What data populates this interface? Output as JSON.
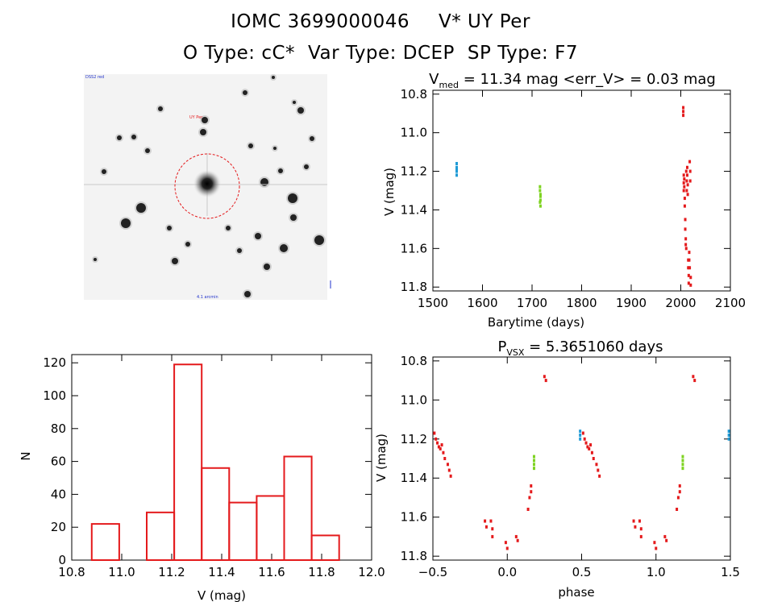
{
  "header": {
    "object": "IOMC 3699000046",
    "star": "V* UY Per",
    "o_type": "O Type: cC*",
    "var_type": "Var Type: DCEP",
    "sp_type": "SP Type: F7"
  },
  "image_panel": {
    "label_top_left": "DSS2 red",
    "label_marker": "UY Per",
    "label_bottom_center": "4.1 arcmin"
  },
  "chart_data": [
    {
      "type": "scatter",
      "title_prefix": "V",
      "title_sub": "med",
      "title_suffix": " = 11.34 mag <err_V> = 0.03 mag",
      "xlabel": "Barytime (days)",
      "ylabel": "V (mag)",
      "xlim": [
        1500,
        2100
      ],
      "ylim": [
        11.82,
        10.78
      ],
      "y_inverted": true,
      "xticks": [
        "1500",
        "1600",
        "1700",
        "1800",
        "1900",
        "2000",
        "2100"
      ],
      "yticks": [
        "10.8",
        "11.0",
        "11.2",
        "11.4",
        "11.6",
        "11.8"
      ],
      "series": [
        {
          "color": "#1f9bd6",
          "x": [
            1548,
            1548,
            1548,
            1548,
            1548
          ],
          "y": [
            11.16,
            11.18,
            11.19,
            11.2,
            11.22
          ]
        },
        {
          "color": "#7ed321",
          "x": [
            1716,
            1716,
            1717,
            1717,
            1717,
            1716,
            1717
          ],
          "y": [
            11.28,
            11.3,
            11.32,
            11.33,
            11.35,
            11.36,
            11.38
          ]
        },
        {
          "color": "#e41a1c",
          "x": [
            2005,
            2005,
            2005,
            2006,
            2006,
            2006,
            2007,
            2007,
            2008,
            2008,
            2009,
            2009,
            2010,
            2010,
            2011,
            2011,
            2012,
            2012,
            2013,
            2013,
            2014,
            2014,
            2015,
            2015,
            2016,
            2016,
            2017,
            2017,
            2018,
            2018,
            2019,
            2019,
            2020,
            2020
          ],
          "y": [
            10.87,
            10.89,
            10.91,
            11.22,
            11.26,
            11.3,
            11.24,
            11.28,
            11.34,
            11.38,
            11.45,
            11.5,
            11.55,
            11.58,
            11.6,
            11.2,
            11.25,
            11.3,
            11.18,
            11.22,
            11.27,
            11.32,
            11.66,
            11.7,
            11.74,
            11.78,
            11.62,
            11.66,
            11.7,
            11.15,
            11.2,
            11.25,
            11.75,
            11.79
          ]
        }
      ]
    },
    {
      "type": "bar",
      "xlabel": "V (mag)",
      "ylabel": "N",
      "xlim": [
        10.8,
        12.0
      ],
      "ylim": [
        0,
        125
      ],
      "xticks": [
        "10.8",
        "11.0",
        "11.2",
        "11.4",
        "11.6",
        "11.8",
        "12.0"
      ],
      "yticks": [
        "0",
        "20",
        "40",
        "60",
        "80",
        "100",
        "120"
      ],
      "bin_edges": [
        10.88,
        10.99,
        11.1,
        11.21,
        11.32,
        11.43,
        11.54,
        11.65,
        11.76,
        11.87
      ],
      "values": [
        22,
        0,
        29,
        119,
        56,
        35,
        39,
        63,
        15
      ],
      "color": "#e41a1c"
    },
    {
      "type": "scatter",
      "title_prefix": "P",
      "title_sub": "VSX",
      "title_suffix": " = 5.3651060 days",
      "xlabel": "phase",
      "ylabel": "V (mag)",
      "xlim": [
        -0.5,
        1.5
      ],
      "ylim": [
        11.82,
        10.78
      ],
      "y_inverted": true,
      "xticks": [
        "−0.5",
        "0.0",
        "0.5",
        "1.0",
        "1.5"
      ],
      "yticks": [
        "10.8",
        "11.0",
        "11.2",
        "11.4",
        "11.6",
        "11.8"
      ],
      "series": [
        {
          "color": "#1f9bd6",
          "x": [
            0.49,
            0.49,
            0.49,
            1.49,
            1.49,
            1.49
          ],
          "y": [
            11.16,
            11.18,
            11.2,
            11.16,
            11.18,
            11.2
          ]
        },
        {
          "color": "#7ed321",
          "x": [
            0.18,
            0.18,
            0.18,
            0.18,
            1.18,
            1.18,
            1.18,
            1.18
          ],
          "y": [
            11.29,
            11.31,
            11.33,
            11.35,
            11.29,
            11.31,
            11.33,
            11.35
          ]
        },
        {
          "color": "#e41a1c",
          "x": [
            -0.49,
            -0.48,
            -0.47,
            -0.46,
            -0.45,
            -0.44,
            -0.43,
            -0.42,
            -0.4,
            -0.39,
            -0.38,
            -0.15,
            -0.14,
            -0.11,
            -0.1,
            -0.1,
            -0.01,
            0.0,
            0.06,
            0.07,
            0.14,
            0.15,
            0.16,
            0.16,
            0.25,
            0.26,
            0.51,
            0.52,
            0.53,
            0.54,
            0.55,
            0.56,
            0.57,
            0.58,
            0.6,
            0.61,
            0.62,
            0.85,
            0.86,
            0.89,
            0.9,
            0.9,
            0.99,
            1.0,
            1.06,
            1.07,
            1.14,
            1.15,
            1.16,
            1.16,
            1.25,
            1.26
          ],
          "y": [
            11.17,
            11.2,
            11.22,
            11.24,
            11.25,
            11.23,
            11.27,
            11.3,
            11.33,
            11.36,
            11.39,
            11.62,
            11.65,
            11.62,
            11.66,
            11.7,
            11.73,
            11.76,
            11.7,
            11.72,
            11.56,
            11.5,
            11.44,
            11.47,
            10.88,
            10.9,
            11.17,
            11.2,
            11.22,
            11.24,
            11.25,
            11.23,
            11.27,
            11.3,
            11.33,
            11.36,
            11.39,
            11.62,
            11.65,
            11.62,
            11.66,
            11.7,
            11.73,
            11.76,
            11.7,
            11.72,
            11.56,
            11.5,
            11.44,
            11.47,
            10.88,
            10.9
          ]
        }
      ]
    }
  ]
}
